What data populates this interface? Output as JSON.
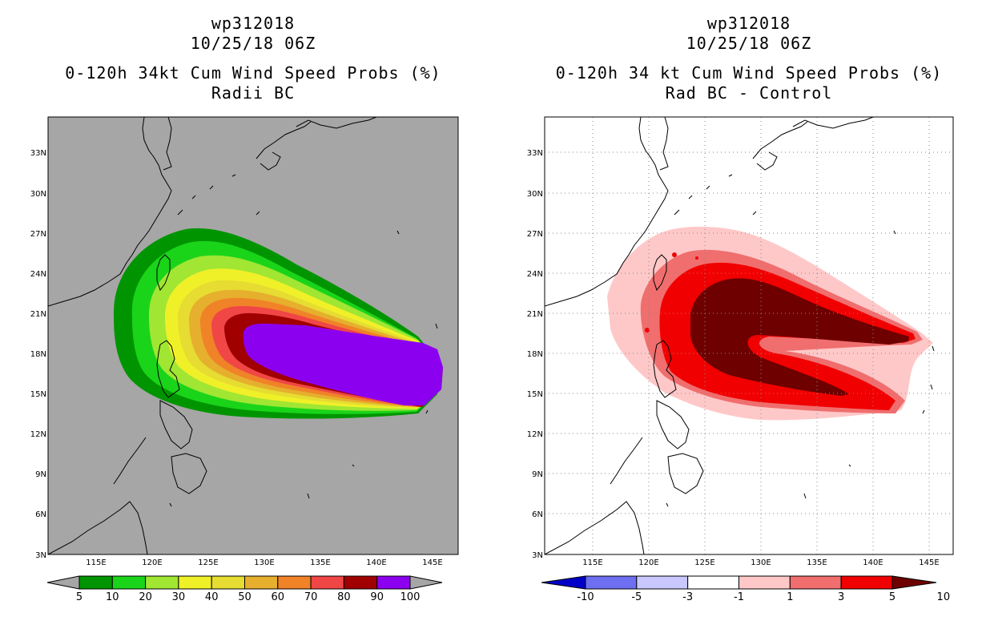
{
  "panels": [
    {
      "id": "left",
      "title_line1": "wp312018",
      "title_line2": "10/25/18 06Z",
      "title_line3": "0-120h 34kt Cum Wind Speed Probs (%)",
      "title_line4": "Radii BC",
      "background": "#a6a6a6",
      "colorbar_labels": [
        "5",
        "10",
        "20",
        "30",
        "40",
        "50",
        "60",
        "70",
        "80",
        "90",
        "100"
      ],
      "colorbar_colors": [
        "#009500",
        "#1ad41a",
        "#a0e632",
        "#f0f028",
        "#e6dc32",
        "#e6af2d",
        "#f08228",
        "#f04646",
        "#a00000",
        "#8c00f0"
      ]
    },
    {
      "id": "right",
      "title_line1": "wp312018",
      "title_line2": "10/25/18 06Z",
      "title_line3": "0-120h 34 kt Cum Wind Speed Probs (%)",
      "title_line4": "Rad BC - Control",
      "background": "#ffffff",
      "colorbar_labels": [
        "-10",
        "-5",
        "-3",
        "-1",
        "1",
        "3",
        "5",
        "10"
      ],
      "colorbar_colors": [
        "#0000c8",
        "#6e6ef0",
        "#c8c8ff",
        "#ffffff",
        "#ffc8c8",
        "#f06e6e",
        "#f00000",
        "#6e0000"
      ]
    }
  ],
  "map_axes": {
    "lon_labels": [
      "115E",
      "120E",
      "125E",
      "130E",
      "135E",
      "140E",
      "145E"
    ],
    "lat_labels": [
      "3N",
      "6N",
      "9N",
      "12N",
      "15N",
      "18N",
      "21N",
      "24N",
      "27N",
      "30N",
      "33N"
    ]
  }
}
